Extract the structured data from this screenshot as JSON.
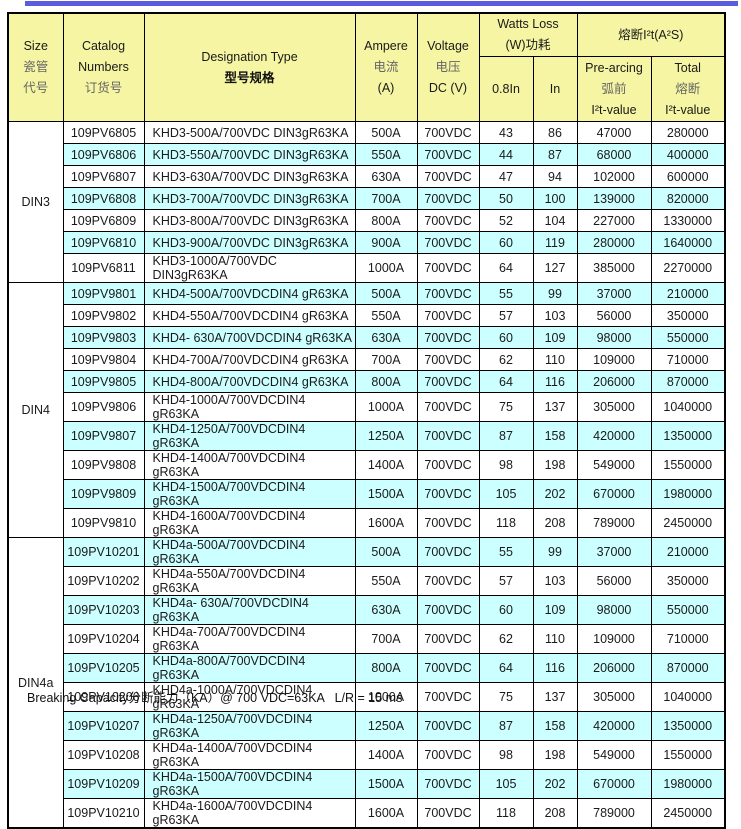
{
  "page": {
    "accent_color": "#5b5be0",
    "footer_note": "Breaking Capacity分断能力（KA）@ 700 VDC=63KA   L/R = 15 ms"
  },
  "table": {
    "colors": {
      "header_bg": "#f5f5a3",
      "stripe_bg": "#ccffff",
      "row_bg": "#ffffff",
      "border": "#000000"
    },
    "header": {
      "size": {
        "en": "Size",
        "zh_line1": "瓷管",
        "zh_line2": "代号"
      },
      "catalog": {
        "en_line1": "Catalog",
        "en_line2": "Numbers",
        "zh": "订货号"
      },
      "designation": {
        "en": "Designation Type",
        "zh": "型号规格"
      },
      "ampere": {
        "en": "Ampere",
        "zh": "电流",
        "unit": "(A)"
      },
      "voltage": {
        "en": "Voltage",
        "zh": "电压",
        "unit": "DC (V)"
      },
      "watts_loss": {
        "en": "Watts Loss",
        "zh": "(W)功耗",
        "sub_08in": "0.8In",
        "sub_in": "In"
      },
      "melting_i2t": {
        "title": "熔断I²t(A²S)",
        "prearcing": {
          "en": "Pre-arcing",
          "zh": "弧前",
          "value_label": "I²t-value"
        },
        "total": {
          "en": "Total",
          "zh": "熔断",
          "value_label": "I²t-value"
        }
      }
    },
    "groups": [
      {
        "size": "DIN3",
        "rows": [
          [
            "109PV6805",
            "KHD3-500A/700VDC DIN3gR63KA",
            "500A",
            "700VDC",
            "43",
            "86",
            "47000",
            "280000"
          ],
          [
            "109PV6806",
            "KHD3-550A/700VDC DIN3gR63KA",
            "550A",
            "700VDC",
            "44",
            "87",
            "68000",
            "400000"
          ],
          [
            "109PV6807",
            "KHD3-630A/700VDC DIN3gR63KA",
            "630A",
            "700VDC",
            "47",
            "94",
            "102000",
            "600000"
          ],
          [
            "109PV6808",
            "KHD3-700A/700VDC DIN3gR63KA",
            "700A",
            "700VDC",
            "50",
            "100",
            "139000",
            "820000"
          ],
          [
            "109PV6809",
            "KHD3-800A/700VDC DIN3gR63KA",
            "800A",
            "700VDC",
            "52",
            "104",
            "227000",
            "1330000"
          ],
          [
            "109PV6810",
            "KHD3-900A/700VDC DIN3gR63KA",
            "900A",
            "700VDC",
            "60",
            "119",
            "280000",
            "1640000"
          ],
          [
            "109PV6811",
            "KHD3-1000A/700VDC DIN3gR63KA",
            "1000A",
            "700VDC",
            "64",
            "127",
            "385000",
            "2270000"
          ]
        ]
      },
      {
        "size": "DIN4",
        "rows": [
          [
            "109PV9801",
            "KHD4-500A/700VDCDIN4 gR63KA",
            "500A",
            "700VDC",
            "55",
            "99",
            "37000",
            "210000"
          ],
          [
            "109PV9802",
            "KHD4-550A/700VDCDIN4 gR63KA",
            "550A",
            "700VDC",
            "57",
            "103",
            "56000",
            "350000"
          ],
          [
            "109PV9803",
            "KHD4- 630A/700VDCDIN4 gR63KA",
            "630A",
            "700VDC",
            "60",
            "109",
            "98000",
            "550000"
          ],
          [
            "109PV9804",
            "KHD4-700A/700VDCDIN4 gR63KA",
            "700A",
            "700VDC",
            "62",
            "110",
            "109000",
            "710000"
          ],
          [
            "109PV9805",
            "KHD4-800A/700VDCDIN4 gR63KA",
            "800A",
            "700VDC",
            "64",
            "116",
            "206000",
            "870000"
          ],
          [
            "109PV9806",
            "KHD4-1000A/700VDCDIN4 gR63KA",
            "1000A",
            "700VDC",
            "75",
            "137",
            "305000",
            "1040000"
          ],
          [
            "109PV9807",
            "KHD4-1250A/700VDCDIN4 gR63KA",
            "1250A",
            "700VDC",
            "87",
            "158",
            "420000",
            "1350000"
          ],
          [
            "109PV9808",
            "KHD4-1400A/700VDCDIN4 gR63KA",
            "1400A",
            "700VDC",
            "98",
            "198",
            "549000",
            "1550000"
          ],
          [
            "109PV9809",
            "KHD4-1500A/700VDCDIN4 gR63KA",
            "1500A",
            "700VDC",
            "105",
            "202",
            "670000",
            "1980000"
          ],
          [
            "109PV9810",
            "KHD4-1600A/700VDCDIN4 gR63KA",
            "1600A",
            "700VDC",
            "118",
            "208",
            "789000",
            "2450000"
          ]
        ]
      },
      {
        "size": "DIN4a",
        "rows": [
          [
            "109PV10201",
            "KHD4a-500A/700VDCDIN4 gR63KA",
            "500A",
            "700VDC",
            "55",
            "99",
            "37000",
            "210000"
          ],
          [
            "109PV10202",
            "KHD4a-550A/700VDCDIN4 gR63KA",
            "550A",
            "700VDC",
            "57",
            "103",
            "56000",
            "350000"
          ],
          [
            "109PV10203",
            "KHD4a- 630A/700VDCDIN4 gR63KA",
            "630A",
            "700VDC",
            "60",
            "109",
            "98000",
            "550000"
          ],
          [
            "109PV10204",
            "KHD4a-700A/700VDCDIN4 gR63KA",
            "700A",
            "700VDC",
            "62",
            "110",
            "109000",
            "710000"
          ],
          [
            "109PV10205",
            "KHD4a-800A/700VDCDIN4 gR63KA",
            "800A",
            "700VDC",
            "64",
            "116",
            "206000",
            "870000"
          ],
          [
            "109PV10206",
            "KHD4a-1000A/700VDCDIN4 gR63KA",
            "1000A",
            "700VDC",
            "75",
            "137",
            "305000",
            "1040000"
          ],
          [
            "109PV10207",
            "KHD4a-1250A/700VDCDIN4 gR63KA",
            "1250A",
            "700VDC",
            "87",
            "158",
            "420000",
            "1350000"
          ],
          [
            "109PV10208",
            "KHD4a-1400A/700VDCDIN4 gR63KA",
            "1400A",
            "700VDC",
            "98",
            "198",
            "549000",
            "1550000"
          ],
          [
            "109PV10209",
            "KHD4a-1500A/700VDCDIN4 gR63KA",
            "1500A",
            "700VDC",
            "105",
            "202",
            "670000",
            "1980000"
          ],
          [
            "109PV10210",
            "KHD4a-1600A/700VDCDIN4 gR63KA",
            "1600A",
            "700VDC",
            "118",
            "208",
            "789000",
            "2450000"
          ]
        ]
      }
    ]
  }
}
